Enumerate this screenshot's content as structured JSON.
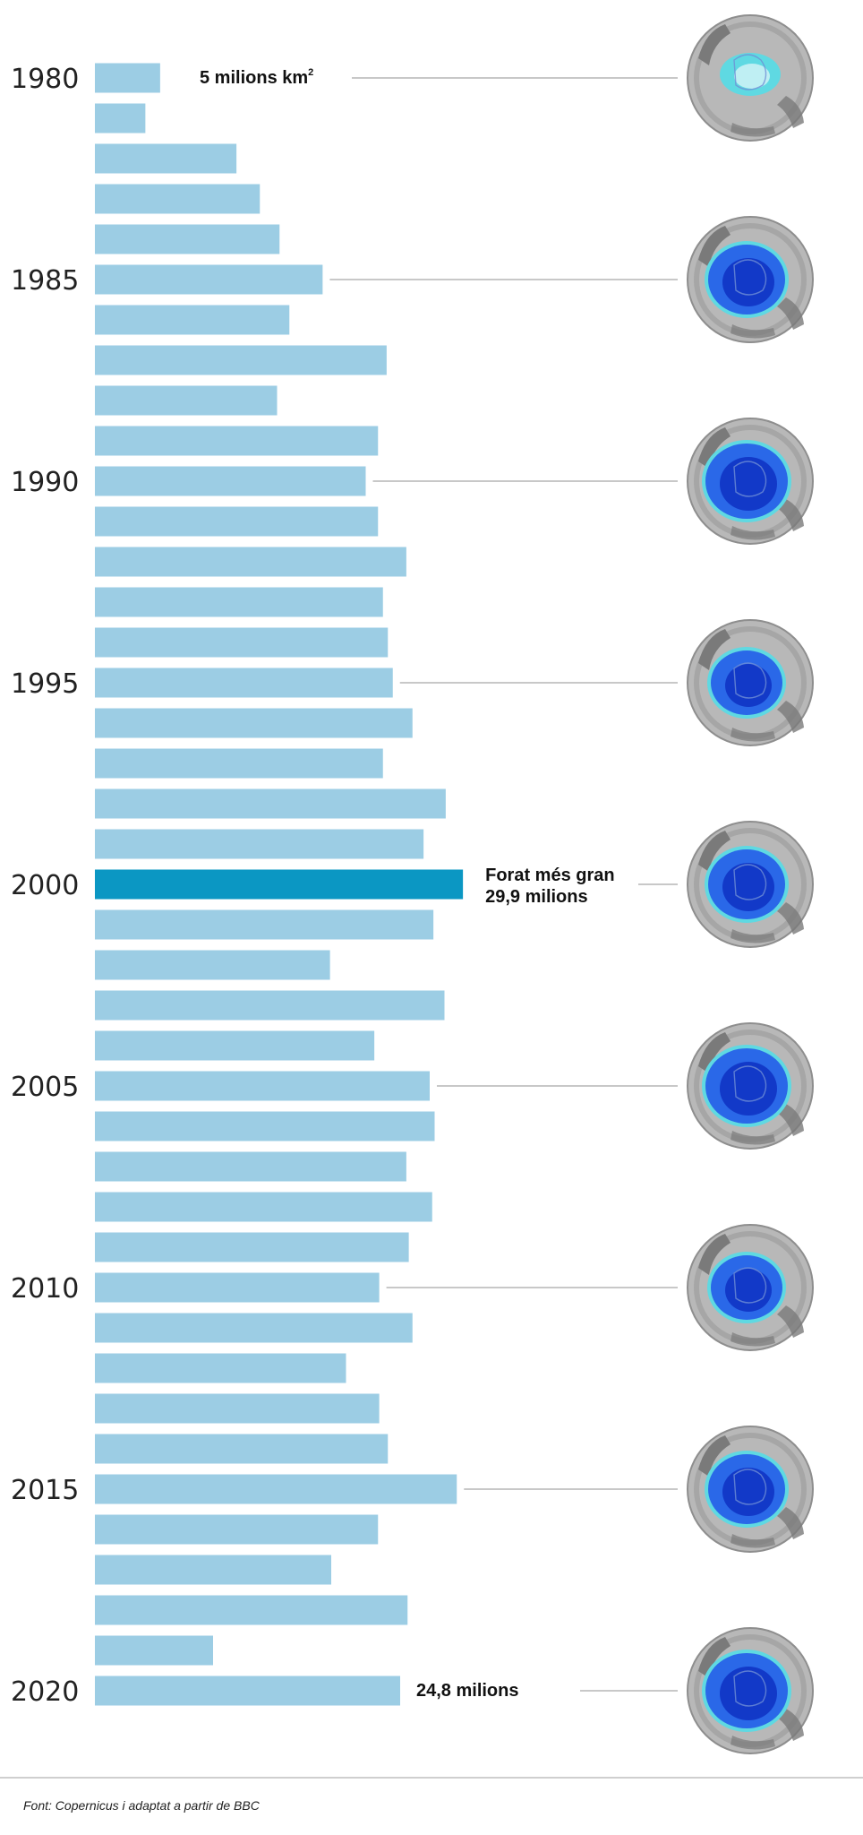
{
  "chart_data": {
    "type": "bar",
    "orientation": "horizontal",
    "unit": "milions km²",
    "years": [
      1980,
      1981,
      1982,
      1983,
      1984,
      1985,
      1986,
      1987,
      1988,
      1989,
      1990,
      1991,
      1992,
      1993,
      1994,
      1995,
      1996,
      1997,
      1998,
      1999,
      2000,
      2001,
      2002,
      2003,
      2004,
      2005,
      2006,
      2007,
      2008,
      2009,
      2010,
      2011,
      2012,
      2013,
      2014,
      2015,
      2016,
      2017,
      2018,
      2019,
      2020
    ],
    "values": [
      5.3,
      4.1,
      11.5,
      13.4,
      15.0,
      18.5,
      15.8,
      23.7,
      14.8,
      23.0,
      22.0,
      23.0,
      25.3,
      23.4,
      23.8,
      24.2,
      25.8,
      23.4,
      28.5,
      26.7,
      29.9,
      27.5,
      19.1,
      28.4,
      22.7,
      27.2,
      27.6,
      25.3,
      27.4,
      25.5,
      23.1,
      25.8,
      20.4,
      23.1,
      23.8,
      29.4,
      23.0,
      19.2,
      25.4,
      9.6,
      24.8
    ],
    "highlight_year": 2000,
    "year_labels": [
      "1980",
      "1985",
      "1990",
      "1995",
      "2000",
      "2005",
      "2010",
      "2015",
      "2020"
    ],
    "annotations": [
      {
        "year": 1980,
        "text": "5 milions km",
        "sup": "2"
      },
      {
        "year": 2000,
        "lines": [
          "Forat més gran",
          "29,9 milions"
        ]
      },
      {
        "year": 2020,
        "text": "24,8 milions"
      }
    ],
    "thumbnail_years": [
      1980,
      1985,
      1990,
      1995,
      2000,
      2005,
      2010,
      2015,
      2020
    ],
    "colors": {
      "bar": "#9ccde4",
      "bar_highlight": "#0b97c3",
      "leader": "#c8c8c8",
      "globe_base": "#b8b8b8",
      "globe_land": "#7a7a7a",
      "hole_dark": "#1239c8",
      "hole_mid": "#2a68e8",
      "hole_edge": "#5fd9e2"
    }
  },
  "footer": {
    "source": "Font: Copernicus i adaptat a partir de BBC"
  }
}
